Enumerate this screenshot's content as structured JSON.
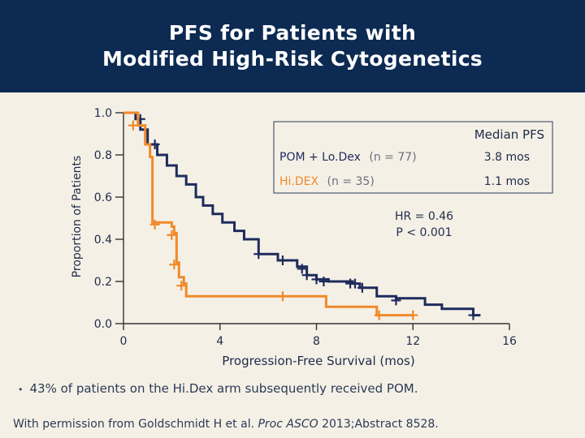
{
  "slide": {
    "title_line1": "PFS for Patients with",
    "title_line2": "Modified High-Risk Cytogenetics",
    "bullet": "43% of patients on the Hi.Dex arm subsequently received POM.",
    "credit_prefix": "With permission from Goldschmidt H et al. ",
    "credit_journal": "Proc ASCO",
    "credit_suffix": " 2013;Abstract 8528."
  },
  "colors": {
    "header_bg": "#0c2a52",
    "pom_line": "#1e2b5c",
    "hidex_line": "#ef8a2a",
    "background": "#f5f0e6"
  },
  "chart_data": {
    "type": "line",
    "ylabel": "Proportion of Patients",
    "xlabel": "Progression-Free Survival (mos)",
    "xlim": [
      0,
      16
    ],
    "ylim": [
      0,
      1
    ],
    "x_ticks": [
      0,
      4,
      8,
      12,
      16
    ],
    "x_tick_labels": [
      "0",
      "4",
      "8",
      "12",
      "16"
    ],
    "y_ticks": [
      0,
      0.2,
      0.4,
      0.6,
      0.8,
      1.0
    ],
    "y_tick_labels": [
      "0.0",
      "0.2",
      "0.4",
      "0.6",
      "0.8",
      "1.0"
    ],
    "legend": {
      "header": "Median PFS",
      "entries": [
        {
          "name": "POM + Lo.Dex",
          "n_label": "(n = 77)",
          "median": "3.8 mos"
        },
        {
          "name": "Hi.DEX",
          "n_label": "(n = 35)",
          "median": "1.1 mos"
        }
      ]
    },
    "annotation_line1": "HR = 0.46",
    "annotation_line2": "P < 0.001",
    "series": [
      {
        "name": "POM + Lo.Dex (n = 77)",
        "color_key": "pom_line",
        "steps": [
          [
            0,
            1.0
          ],
          [
            0.5,
            0.97
          ],
          [
            0.7,
            0.92
          ],
          [
            1.0,
            0.85
          ],
          [
            1.4,
            0.8
          ],
          [
            1.8,
            0.75
          ],
          [
            2.2,
            0.7
          ],
          [
            2.6,
            0.66
          ],
          [
            3.0,
            0.6
          ],
          [
            3.3,
            0.56
          ],
          [
            3.7,
            0.52
          ],
          [
            4.1,
            0.48
          ],
          [
            4.6,
            0.44
          ],
          [
            5.0,
            0.4
          ],
          [
            5.6,
            0.33
          ],
          [
            6.4,
            0.3
          ],
          [
            7.2,
            0.27
          ],
          [
            7.6,
            0.23
          ],
          [
            8.0,
            0.21
          ],
          [
            8.5,
            0.2
          ],
          [
            9.5,
            0.19
          ],
          [
            9.8,
            0.17
          ],
          [
            10.5,
            0.13
          ],
          [
            11.3,
            0.12
          ],
          [
            12.5,
            0.09
          ],
          [
            13.2,
            0.07
          ],
          [
            14.5,
            0.04
          ],
          [
            14.8,
            0.04
          ]
        ],
        "censors": [
          [
            0.7,
            0.97
          ],
          [
            1.3,
            0.85
          ],
          [
            5.6,
            0.33
          ],
          [
            6.6,
            0.3
          ],
          [
            7.4,
            0.26
          ],
          [
            7.6,
            0.23
          ],
          [
            8.0,
            0.21
          ],
          [
            8.3,
            0.2
          ],
          [
            9.4,
            0.19
          ],
          [
            9.6,
            0.19
          ],
          [
            9.9,
            0.17
          ],
          [
            11.3,
            0.11
          ],
          [
            14.5,
            0.04
          ]
        ]
      },
      {
        "name": "Hi.DEX (n = 35)",
        "color_key": "hidex_line",
        "steps": [
          [
            0,
            1.0
          ],
          [
            0.6,
            0.94
          ],
          [
            0.9,
            0.85
          ],
          [
            1.1,
            0.79
          ],
          [
            1.2,
            0.48
          ],
          [
            2.0,
            0.46
          ],
          [
            2.1,
            0.43
          ],
          [
            2.2,
            0.29
          ],
          [
            2.3,
            0.22
          ],
          [
            2.5,
            0.19
          ],
          [
            2.6,
            0.13
          ],
          [
            6.6,
            0.13
          ],
          [
            8.4,
            0.08
          ],
          [
            10.4,
            0.08
          ],
          [
            10.5,
            0.04
          ],
          [
            12.0,
            0.04
          ]
        ],
        "censors": [
          [
            0.4,
            0.94
          ],
          [
            1.3,
            0.47
          ],
          [
            2.0,
            0.42
          ],
          [
            2.1,
            0.28
          ],
          [
            2.4,
            0.18
          ],
          [
            6.6,
            0.13
          ],
          [
            10.6,
            0.04
          ],
          [
            12.0,
            0.04
          ]
        ]
      }
    ]
  }
}
